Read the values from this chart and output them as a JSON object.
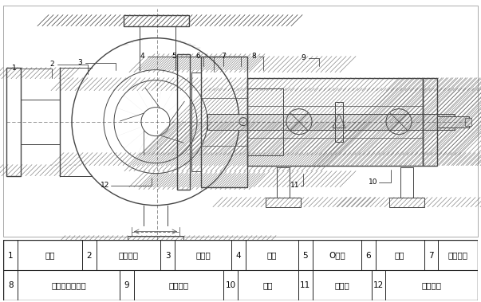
{
  "figure_width": 6.03,
  "figure_height": 3.79,
  "dpi": 100,
  "bg_color": "#ffffff",
  "line_color": "#444444",
  "hatch_color": "#555555",
  "label_fontsize": 6.5,
  "table_fontsize": 7.5,
  "border_color": "#222222",
  "text_color": "#000000",
  "table_row1": [
    [
      "1",
      "泵体"
    ],
    [
      "2",
      "调节螺杆"
    ],
    [
      "3",
      "耐磨板"
    ],
    [
      "4",
      "叶轮"
    ],
    [
      "5",
      "O形圈"
    ],
    [
      "6",
      "泵盖"
    ],
    [
      "7",
      "软管接头"
    ]
  ],
  "table_row2": [
    [
      "8",
      "填料或机械密封"
    ],
    [
      "9",
      "悬架部件"
    ],
    [
      "10",
      "支架"
    ],
    [
      "11",
      "挡水圈"
    ],
    [
      "12",
      "叶轮螺母"
    ]
  ]
}
